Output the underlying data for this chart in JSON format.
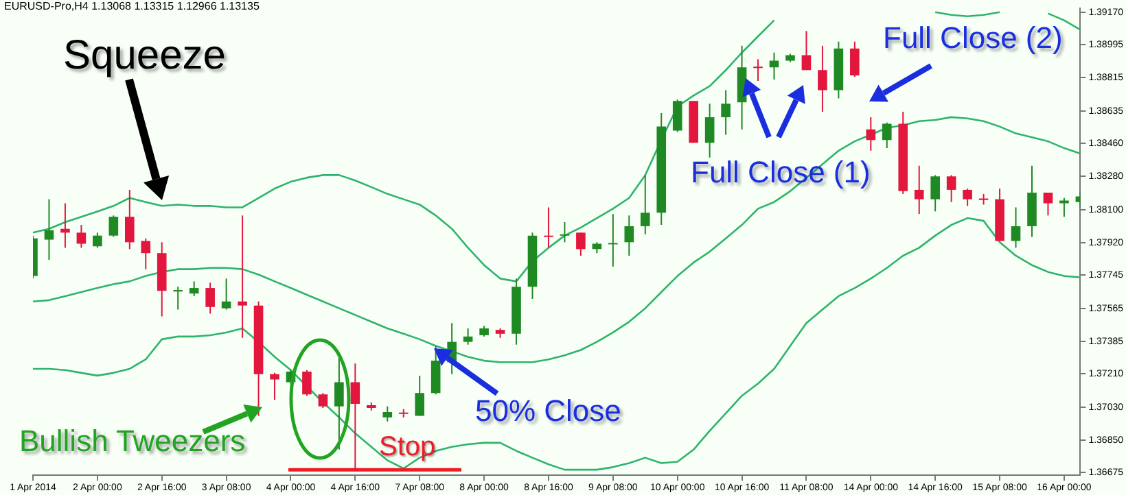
{
  "chart_data": {
    "type": "candlestick",
    "title": "EURUSD-Pro,H4 1.13068 1.13315 1.12966 1.13135",
    "categories": [
      "1 Apr 2014",
      null,
      null,
      null,
      "2 Apr 00:00",
      null,
      null,
      null,
      "2 Apr 16:00",
      null,
      null,
      null,
      "3 Apr 08:00",
      null,
      null,
      null,
      "4 Apr 00:00",
      null,
      null,
      null,
      "4 Apr 16:00",
      null,
      null,
      null,
      "7 Apr 08:00",
      null,
      null,
      null,
      "8 Apr 00:00",
      null,
      null,
      null,
      "8 Apr 16:00",
      null,
      null,
      null,
      "9 Apr 08:00",
      null,
      null,
      null,
      "10 Apr 00:00",
      null,
      null,
      null,
      "10 Apr 16:00",
      null,
      null,
      null,
      "11 Apr 08:00",
      null,
      null,
      null,
      "14 Apr 00:00",
      null,
      null,
      null,
      "14 Apr 16:00",
      null,
      null,
      null,
      "15 Apr 08:00",
      null,
      null,
      null,
      "16 Apr 00:00",
      null
    ],
    "ohlc": [
      [
        1.3774,
        1.37959,
        1.37726,
        1.37944
      ],
      [
        1.37937,
        1.38156,
        1.37828,
        1.37988
      ],
      [
        1.37996,
        1.38134,
        1.37893,
        1.37975
      ],
      [
        1.37975,
        1.38017,
        1.37893,
        1.37915
      ],
      [
        1.37901,
        1.37975,
        1.37893,
        1.37959
      ],
      [
        1.37959,
        1.38068,
        1.37952,
        1.38061
      ],
      [
        1.38061,
        1.38207,
        1.37886,
        1.37923
      ],
      [
        1.3793,
        1.37944,
        1.37777,
        1.37864
      ],
      [
        1.37864,
        1.37923,
        1.37521,
        1.3766
      ],
      [
        1.37656,
        1.37682,
        1.37558,
        1.37664
      ],
      [
        1.37645,
        1.37711,
        1.37631,
        1.37675
      ],
      [
        1.37675,
        1.37704,
        1.37536,
        1.37572
      ],
      [
        1.37565,
        1.37726,
        1.37558,
        1.37602
      ],
      [
        1.37602,
        1.38068,
        1.37405,
        1.3758
      ],
      [
        1.3758,
        1.37602,
        1.36982,
        1.37208
      ],
      [
        1.37208,
        1.37215,
        1.37069,
        1.37179
      ],
      [
        1.37164,
        1.3723,
        1.37157,
        1.37222
      ],
      [
        1.37222,
        1.3723,
        1.37091,
        1.37098
      ],
      [
        1.37098,
        1.37106,
        1.37025,
        1.37033
      ],
      [
        1.37033,
        1.37302,
        1.36799,
        1.37164
      ],
      [
        1.37164,
        1.37266,
        1.3669,
        1.37047
      ],
      [
        1.3704,
        1.37055,
        1.37011,
        1.37025
      ],
      [
        1.36974,
        1.37033,
        1.36952,
        1.37003
      ],
      [
        1.37,
        1.37018,
        1.36974,
        1.36993
      ],
      [
        1.36982,
        1.372,
        1.36982,
        1.37106
      ],
      [
        1.37106,
        1.37361,
        1.37098,
        1.37281
      ],
      [
        1.37273,
        1.37485,
        1.37208,
        1.37383
      ],
      [
        1.37383,
        1.37456,
        1.37368,
        1.37412
      ],
      [
        1.37419,
        1.3747,
        1.37412,
        1.37456
      ],
      [
        1.37448,
        1.37456,
        1.37405,
        1.37427
      ],
      [
        1.37427,
        1.37726,
        1.37368,
        1.37682
      ],
      [
        1.37682,
        1.37975,
        1.37616,
        1.37959
      ],
      [
        1.37959,
        1.38112,
        1.37893,
        1.37952
      ],
      [
        1.37959,
        1.38032,
        1.37923,
        1.37966
      ],
      [
        1.37975,
        1.37975,
        1.3785,
        1.37886
      ],
      [
        1.37886,
        1.37923,
        1.37864,
        1.37915
      ],
      [
        1.37912,
        1.38076,
        1.37791,
        1.37919
      ],
      [
        1.37923,
        1.38068,
        1.3785,
        1.3801
      ],
      [
        1.3801,
        1.38287,
        1.37966,
        1.38083
      ],
      [
        1.38083,
        1.38623,
        1.38017,
        1.3855
      ],
      [
        1.38528,
        1.38696,
        1.38521,
        1.38689
      ],
      [
        1.38689,
        1.38689,
        1.38462,
        1.38462
      ],
      [
        1.38462,
        1.38674,
        1.38382,
        1.38601
      ],
      [
        1.38601,
        1.38747,
        1.38506,
        1.38674
      ],
      [
        1.38681,
        1.38988,
        1.38535,
        1.38871
      ],
      [
        1.38875,
        1.38915,
        1.38798,
        1.38867
      ],
      [
        1.38871,
        1.38951,
        1.38805,
        1.38907
      ],
      [
        1.38907,
        1.38944,
        1.389,
        1.38937
      ],
      [
        1.38937,
        1.39068,
        1.38856,
        1.38856
      ],
      [
        1.38856,
        1.38988,
        1.3863,
        1.38747
      ],
      [
        1.38747,
        1.3901,
        1.38703,
        1.38973
      ],
      [
        1.38973,
        1.3901,
        1.3882,
        1.38827
      ],
      [
        1.38535,
        1.38601,
        1.38419,
        1.38477
      ],
      [
        1.38477,
        1.38572,
        1.38433,
        1.38565
      ],
      [
        1.38565,
        1.3863,
        1.38185,
        1.382
      ],
      [
        1.38207,
        1.38338,
        1.38076,
        1.38156
      ],
      [
        1.38156,
        1.38287,
        1.3809,
        1.3828
      ],
      [
        1.3828,
        1.38287,
        1.38141,
        1.38207
      ],
      [
        1.38207,
        1.38214,
        1.3812,
        1.38156
      ],
      [
        1.3816,
        1.38185,
        1.38127,
        1.38152
      ],
      [
        1.38156,
        1.38214,
        1.3793,
        1.3793
      ],
      [
        1.3793,
        1.38112,
        1.37893,
        1.3801
      ],
      [
        1.3801,
        1.38338,
        1.37952,
        1.38192
      ],
      [
        1.38192,
        1.38192,
        1.38068,
        1.38134
      ],
      [
        1.38134,
        1.38163,
        1.38061,
        1.38149
      ],
      [
        1.38141,
        1.382,
        1.38105,
        1.38171
      ]
    ],
    "colors": [
      "#1f8a23",
      "#1f8a23",
      "#e3173e",
      "#e3173e",
      "#1f8a23",
      "#1f8a23",
      "#e3173e",
      "#e3173e",
      "#e3173e",
      "#1f8a23",
      "#1f8a23",
      "#e3173e",
      "#1f8a23",
      "#e3173e",
      "#e3173e",
      "#e3173e",
      "#1f8a23",
      "#e3173e",
      "#e3173e",
      "#1f8a23",
      "#e3173e",
      "#e3173e",
      "#1f8a23",
      "#e3173e",
      "#1f8a23",
      "#1f8a23",
      "#1f8a23",
      "#1f8a23",
      "#1f8a23",
      "#e3173e",
      "#1f8a23",
      "#1f8a23",
      "#e3173e",
      "#1f8a23",
      "#e3173e",
      "#1f8a23",
      "#1f8a23",
      "#1f8a23",
      "#1f8a23",
      "#1f8a23",
      "#1f8a23",
      "#e3173e",
      "#1f8a23",
      "#1f8a23",
      "#1f8a23",
      "#e3173e",
      "#1f8a23",
      "#1f8a23",
      "#e3173e",
      "#e3173e",
      "#1f8a23",
      "#e3173e",
      "#e3173e",
      "#1f8a23",
      "#e3173e",
      "#e3173e",
      "#1f8a23",
      "#e3173e",
      "#e3173e",
      "#e3173e",
      "#e3173e",
      "#1f8a23",
      "#1f8a23",
      "#e3173e",
      "#1f8a23",
      "#1f8a23"
    ],
    "series": [
      {
        "type": "line",
        "color": "#2eb46a",
        "values": [
          1.37975,
          1.37996,
          1.38032,
          1.38061,
          1.3809,
          1.3812,
          1.38163,
          1.38141,
          1.3812,
          1.38127,
          1.3812,
          1.3812,
          1.38112,
          1.38112,
          1.38163,
          1.38214,
          1.38251,
          1.38273,
          1.38287,
          1.38287,
          1.38258,
          1.38222,
          1.38185,
          1.38156,
          1.38127,
          1.38068,
          1.37996,
          1.37893,
          1.37799,
          1.37726,
          1.37711,
          1.3782,
          1.37893,
          1.37959,
          1.38003,
          1.38054,
          1.38105,
          1.38163,
          1.38287,
          1.38477,
          1.38659,
          1.38718,
          1.38769,
          1.38856,
          1.38951,
          1.39039,
          1.39126,
          null,
          null,
          null,
          null,
          null,
          null,
          null,
          null,
          null,
          1.3917,
          1.39155,
          1.39148,
          1.39155,
          1.3917,
          null,
          null,
          1.39163,
          1.39126,
          1.39075
        ]
      },
      {
        "type": "line",
        "color": "#2eb46a",
        "values": [
          1.37602,
          1.37609,
          1.37631,
          1.37653,
          1.37675,
          1.37696,
          1.37711,
          1.3774,
          1.37762,
          1.37777,
          1.37777,
          1.37784,
          1.37784,
          1.37777,
          1.37748,
          1.37711,
          1.37675,
          1.37638,
          1.37602,
          1.37565,
          1.37529,
          1.37492,
          1.37456,
          1.37427,
          1.37397,
          1.37361,
          1.37332,
          1.37302,
          1.37281,
          1.37273,
          1.37273,
          1.37273,
          1.37288,
          1.3731,
          1.37339,
          1.37383,
          1.37434,
          1.37492,
          1.37565,
          1.37653,
          1.3774,
          1.37813,
          1.37872,
          1.37944,
          1.38017,
          1.38105,
          1.38141,
          1.382,
          1.38273,
          1.38346,
          1.38419,
          1.3847,
          1.38506,
          1.38543,
          1.38557,
          1.38579,
          1.38586,
          1.38601,
          1.38594,
          1.38579,
          1.3855,
          1.38513,
          1.38492,
          1.3847,
          1.38433,
          1.38404
        ]
      },
      {
        "type": "line",
        "color": "#2eb46a",
        "values": [
          1.37237,
          1.37237,
          1.3723,
          1.37215,
          1.372,
          1.37215,
          1.37237,
          1.37288,
          1.37397,
          1.37412,
          1.37412,
          1.37419,
          1.37434,
          1.37456,
          1.37383,
          1.37302,
          1.3723,
          1.37142,
          1.37055,
          1.36974,
          1.36887,
          1.36814,
          1.36741,
          1.36697,
          1.36755,
          1.36792,
          1.36814,
          1.36828,
          1.36836,
          1.36836,
          1.36792,
          1.36755,
          1.36719,
          1.3669,
          1.3669,
          1.3669,
          1.36704,
          1.36726,
          1.36755,
          1.36726,
          1.36733,
          1.36799,
          1.36901,
          1.36996,
          1.37091,
          1.37157,
          1.37237,
          1.37361,
          1.37485,
          1.37558,
          1.37631,
          1.37675,
          1.37726,
          1.37784,
          1.3785,
          1.37893,
          1.37959,
          1.38017,
          1.38054,
          1.38039,
          1.37923,
          1.3785,
          1.37799,
          1.37762,
          1.3774,
          1.37733
        ]
      }
    ],
    "ylim": [
      1.3666,
      1.3919
    ],
    "yticks": [
      {
        "value": 1.3917,
        "label": "1.39170"
      },
      {
        "value": 1.38995,
        "label": "1.38995"
      },
      {
        "value": 1.38815,
        "label": "1.38815"
      },
      {
        "value": 1.38635,
        "label": "1.38635"
      },
      {
        "value": 1.3846,
        "label": "1.38460"
      },
      {
        "value": 1.3828,
        "label": "1.38280"
      },
      {
        "value": 1.381,
        "label": "1.38100"
      },
      {
        "value": 1.3792,
        "label": "1.37920"
      },
      {
        "value": 1.37745,
        "label": "1.37745"
      },
      {
        "value": 1.37565,
        "label": "1.37565"
      },
      {
        "value": 1.37385,
        "label": "1.37385"
      },
      {
        "value": 1.3721,
        "label": "1.37210"
      },
      {
        "value": 1.3703,
        "label": "1.37030"
      },
      {
        "value": 1.3685,
        "label": "1.36850"
      },
      {
        "value": 1.36675,
        "label": "1.36675"
      }
    ],
    "annotations": [
      "Squeeze",
      "Full Close (2)",
      {
        "text": "Full Close (1)",
        "y": 1.38867
      },
      "50% Close",
      "Bullish Tweezers"
    ],
    "ref_lines": [
      {
        "axis": "y",
        "value": 1.3669,
        "label": "Stop",
        "color": "#ee1c25"
      }
    ],
    "legend": false
  }
}
